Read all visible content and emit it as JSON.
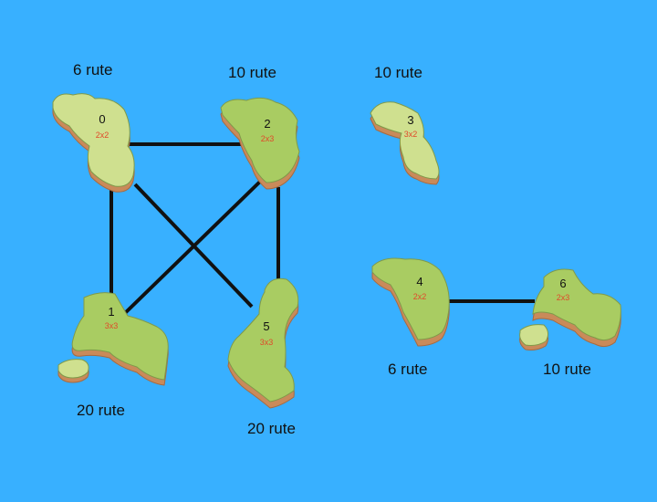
{
  "islands": [
    {
      "id": "0",
      "size": "2x2",
      "routes": "6 rute"
    },
    {
      "id": "1",
      "size": "3x3",
      "routes": "20 rute"
    },
    {
      "id": "2",
      "size": "2x3",
      "routes": "10 rute"
    },
    {
      "id": "3",
      "size": "3x2",
      "routes": "10 rute"
    },
    {
      "id": "4",
      "size": "2x2",
      "routes": "6 rute"
    },
    {
      "id": "5",
      "size": "3x3",
      "routes": "20 rute"
    },
    {
      "id": "6",
      "size": "2x3",
      "routes": "10 rute"
    }
  ],
  "bridges": [
    [
      "0",
      "2"
    ],
    [
      "0",
      "1"
    ],
    [
      "0",
      "5"
    ],
    [
      "2",
      "1"
    ],
    [
      "2",
      "5"
    ],
    [
      "4",
      "6"
    ]
  ],
  "colors": {
    "sea": "#38b0ff",
    "island_light": "#cfe08f",
    "island_dark": "#a9cc62",
    "island_side": "#c98a5a",
    "bridge": "#111111",
    "size_text": "#e04a2a"
  }
}
